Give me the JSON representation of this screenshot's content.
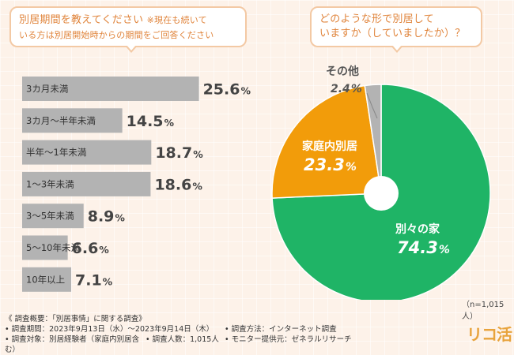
{
  "question_left": {
    "main": "別居期間を教えてください",
    "note_1": "※現在も続いて",
    "note_2": "いる方は別居開始時からの期間をご回答ください"
  },
  "question_right": {
    "line_1": "どのような形で別居して",
    "line_2": "いますか（していましたか）？"
  },
  "chart_data": [
    {
      "type": "bar",
      "orientation": "horizontal",
      "title": "別居期間を教えてください",
      "categories": [
        "3カ月未満",
        "3カ月〜半年未満",
        "半年〜1年未満",
        "1〜3年未満",
        "3〜5年未満",
        "5〜10年未満",
        "10年以上"
      ],
      "values": [
        25.6,
        14.5,
        18.7,
        18.6,
        8.9,
        6.6,
        7.1
      ],
      "value_labels": [
        {
          "num": "25.6",
          "unit": "%"
        },
        {
          "num": "14.5",
          "unit": "%"
        },
        {
          "num": "18.7",
          "unit": "%"
        },
        {
          "num": "18.6",
          "unit": "%"
        },
        {
          "num": "8.9",
          "unit": "%"
        },
        {
          "num": "6.6",
          "unit": "%"
        },
        {
          "num": "7.1",
          "unit": "%"
        }
      ],
      "xlim": [
        0,
        30
      ],
      "bar_color": "#b3b3b3"
    },
    {
      "type": "pie",
      "title": "どのような形で別居していますか（していましたか）？",
      "slices": [
        {
          "label": "別々の家",
          "value": 74.3,
          "num": "74.3",
          "unit": "%",
          "color": "#1fb466"
        },
        {
          "label": "家庭内別居",
          "value": 23.3,
          "num": "23.3",
          "unit": "%",
          "color": "#f29c0a"
        },
        {
          "label": "その他",
          "value": 2.4,
          "num": "2.4",
          "unit": "%",
          "color": "#b3b3b3"
        }
      ]
    }
  ],
  "sample_size": "（n=1,015人）",
  "footer": {
    "heading": "《 調査概要：「別居事情」に関する調査》",
    "period": "• 調査期間：2023年9月13日（水）〜2023年9月14日（木）",
    "method": "• 調査方法：インターネット調査",
    "target": "• 調査対象：別居経験者（家庭内別居含む）",
    "count": "• 調査人数：1,015人",
    "provider": "• モニター提供元：ゼネラルリサーチ"
  },
  "logo": "リコ活"
}
